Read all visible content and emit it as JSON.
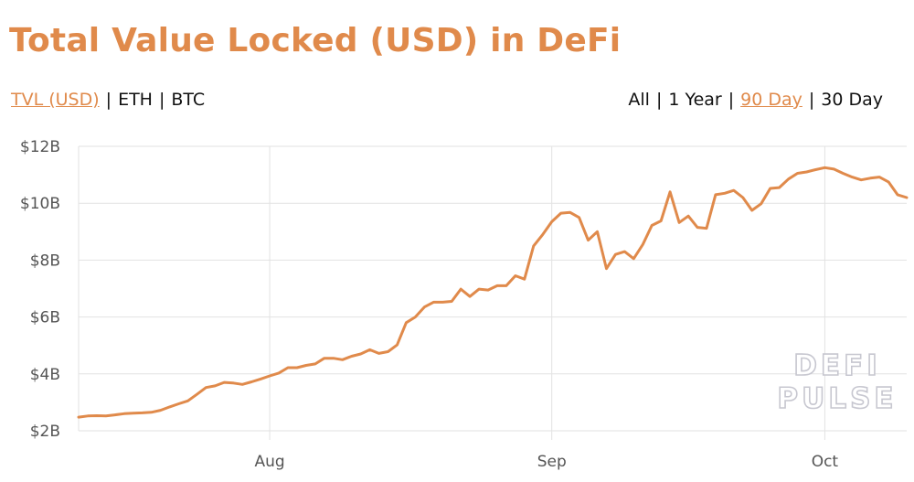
{
  "title": "Total Value Locked (USD) in DeFi",
  "metric_options": [
    {
      "label": "TVL (USD)",
      "active": true
    },
    {
      "label": "ETH",
      "active": false
    },
    {
      "label": "BTC",
      "active": false
    }
  ],
  "range_options": [
    {
      "label": "All",
      "active": false
    },
    {
      "label": "1 Year",
      "active": false
    },
    {
      "label": "90 Day",
      "active": true
    },
    {
      "label": "30 Day",
      "active": false
    }
  ],
  "separator": "|",
  "watermark": [
    "DEFI",
    "PULSE"
  ],
  "colors": {
    "accent": "#e08a4b",
    "line": "#e08a4b",
    "grid": "#e2e2e2",
    "text": "#111111",
    "tick": "#555555",
    "watermark_stroke": "#c7c7d0"
  },
  "chart_data": {
    "type": "line",
    "series": [
      {
        "name": "",
        "values": [
          2.48,
          2.52,
          2.53,
          2.52,
          2.56,
          2.6,
          2.62,
          2.63,
          2.65,
          2.72,
          2.84,
          2.95,
          3.05,
          3.28,
          3.52,
          3.58,
          3.7,
          3.68,
          3.63,
          3.72,
          3.82,
          3.93,
          4.03,
          4.22,
          4.22,
          4.3,
          4.35,
          4.55,
          4.55,
          4.5,
          4.62,
          4.7,
          4.85,
          4.72,
          4.78,
          5.02,
          5.8,
          6.0,
          6.35,
          6.52,
          6.52,
          6.55,
          6.98,
          6.72,
          6.98,
          6.95,
          7.1,
          7.1,
          7.45,
          7.33,
          8.5,
          8.9,
          9.35,
          9.65,
          9.68,
          9.5,
          8.7,
          9.0,
          7.7,
          8.2,
          8.3,
          8.05,
          8.55,
          9.22,
          9.38,
          10.4,
          9.32,
          9.55,
          9.15,
          9.12,
          10.3,
          10.35,
          10.45,
          10.2,
          9.75,
          9.98,
          10.52,
          10.55,
          10.85,
          11.05,
          11.1,
          11.18,
          11.25,
          11.2,
          11.05,
          10.92,
          10.82,
          10.88,
          10.92,
          10.75,
          10.3,
          10.2
        ]
      }
    ],
    "x_start": 0,
    "x_step": 1,
    "x_ticks": [
      {
        "label": "Aug",
        "x": 21
      },
      {
        "label": "Sep",
        "x": 52
      },
      {
        "label": "Oct",
        "x": 82
      }
    ],
    "xlim": [
      0,
      91
    ],
    "ylim": [
      2,
      12
    ],
    "y_ticks": [
      {
        "label": "$2B",
        "value": 2
      },
      {
        "label": "$4B",
        "value": 4
      },
      {
        "label": "$6B",
        "value": 6
      },
      {
        "label": "$8B",
        "value": 8
      },
      {
        "label": "$10B",
        "value": 10
      },
      {
        "label": "$12B",
        "value": 12
      }
    ],
    "ylabel": "",
    "xlabel": "",
    "grid": true
  }
}
